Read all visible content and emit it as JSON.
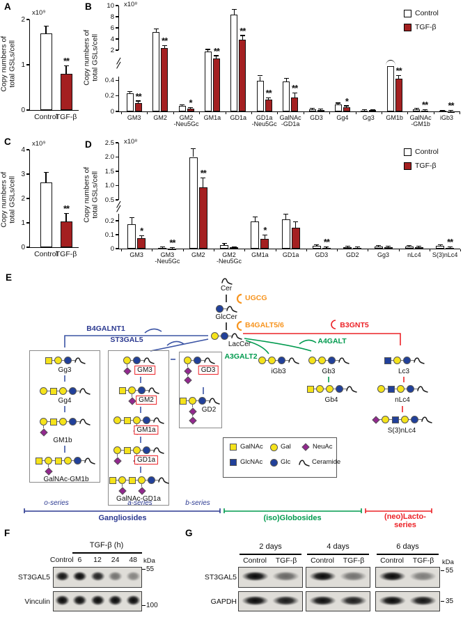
{
  "colors": {
    "control_fill": "#FFFFFF",
    "tgfb_fill": "#A42021",
    "blue": "#2B3990",
    "arrow_blue": "#3A53A4",
    "green": "#009A4E",
    "red": "#EC2227",
    "orange": "#F7941E",
    "yellow": "#F5E31B",
    "glc_blue": "#21409A",
    "neuac_purple": "#93278F"
  },
  "chart_data": [
    {
      "panel_label": "A",
      "type": "bar",
      "scale_label": "x10⁹",
      "ylabel_lines": [
        "Copy numbers of",
        "total GSLs/cell"
      ],
      "categories": [
        "Control",
        "TGF-β"
      ],
      "values": [
        1.7,
        0.8
      ],
      "errors": [
        0.15,
        0.17
      ],
      "sig": [
        "",
        "**"
      ],
      "yticks": [
        0,
        1,
        2
      ],
      "ytick_labels": [
        "0",
        "1",
        "2"
      ],
      "ylim": [
        0,
        2
      ],
      "bar_colors": [
        "#FFFFFF",
        "#A42021"
      ]
    },
    {
      "panel_label": "B",
      "type": "bar",
      "scale_label": "x10⁸",
      "ylabel_lines": [
        "Copy numbers of",
        "total GSLs/cell"
      ],
      "legend": [
        "Control",
        "TGF-β"
      ],
      "categories": [
        "GM3",
        "GM2",
        "GM2-Neu5Gc",
        "GM1a",
        "GD1a",
        "GD1a-Neu5Gc",
        "GalNAc-GD1a",
        "GD3",
        "Gg4",
        "Gg3",
        "GM1b",
        "GalNAc-GM1b",
        "iGb3"
      ],
      "category_lines": [
        [
          "GM3",
          ""
        ],
        [
          "GM2",
          ""
        ],
        [
          "GM2",
          "-Neu5Gc"
        ],
        [
          "GM1a",
          ""
        ],
        [
          "GD1a",
          ""
        ],
        [
          "GD1a",
          "-Neu5Gc"
        ],
        [
          "GalNAc",
          "-GD1a"
        ],
        [
          "GD3",
          ""
        ],
        [
          "Gg4",
          ""
        ],
        [
          "Gg3",
          ""
        ],
        [
          "GM1b",
          ""
        ],
        [
          "GalNAc",
          "-GM1b"
        ],
        [
          "iGb3",
          ""
        ]
      ],
      "axis_break": {
        "lower": [
          0,
          0.45
        ],
        "lower_ticks": [
          0,
          0.2,
          0.4
        ],
        "lower_tick_labels": [
          "0",
          "0.2",
          "0.4"
        ],
        "upper": [
          2,
          10
        ],
        "upper_ticks": [
          2,
          4,
          6,
          8,
          10
        ],
        "upper_tick_labels": [
          "2",
          "4",
          "6",
          "8",
          "10"
        ]
      },
      "series": [
        {
          "name": "Control",
          "fill": "#FFFFFF",
          "values": [
            0.23,
            5.2,
            0.07,
            1.9,
            8.4,
            0.4,
            0.39,
            0.03,
            0.09,
            0.012,
            1.05,
            0.03,
            0.006
          ],
          "errors": [
            0.02,
            0.5,
            0.012,
            0.15,
            0.8,
            0.07,
            0.03,
            0.008,
            0.012,
            0.004,
            0,
            0.008,
            0.002
          ],
          "capped_off_scale": [
            10
          ]
        },
        {
          "name": "TGF-β",
          "fill": "#A42021",
          "values": [
            0.11,
            2.4,
            0.032,
            1.5,
            3.9,
            0.15,
            0.18,
            0.02,
            0.055,
            0.015,
            0.42,
            0.012,
            0.004
          ],
          "errors": [
            0.02,
            0.35,
            0.01,
            0.15,
            0.65,
            0.02,
            0.05,
            0.005,
            0.012,
            0.005,
            0.06,
            0.004,
            0.002
          ],
          "capped_off_scale": []
        }
      ],
      "sig": [
        "**",
        "**",
        "*",
        "**",
        "**",
        "**",
        "**",
        "",
        "*",
        "",
        "**",
        "**",
        "**"
      ]
    },
    {
      "panel_label": "C",
      "type": "bar",
      "scale_label": "x10⁹",
      "ylabel_lines": [
        "Copy numbers of",
        "total GSLs/cell"
      ],
      "categories": [
        "Control",
        "TGF-β"
      ],
      "values": [
        2.65,
        1.05
      ],
      "errors": [
        0.4,
        0.33
      ],
      "sig": [
        "",
        "**"
      ],
      "yticks": [
        0,
        1,
        2,
        3,
        4
      ],
      "ytick_labels": [
        "0",
        "1",
        "2",
        "3",
        "4"
      ],
      "ylim": [
        0,
        4
      ],
      "bar_colors": [
        "#FFFFFF",
        "#A42021"
      ]
    },
    {
      "panel_label": "D",
      "type": "bar",
      "scale_label": "x10⁸",
      "ylabel_lines": [
        "Copy numbers of",
        "total GSLs/cell"
      ],
      "legend": [
        "Control",
        "TGF-β"
      ],
      "categories": [
        "GM3",
        "GM3-Neu5Gc",
        "GM2",
        "GM2-Neu5Gc",
        "GM1a",
        "GD1a",
        "GD3",
        "GD2",
        "Gg3",
        "nLc4",
        "S(3)nLc4"
      ],
      "category_lines": [
        [
          "GM3",
          ""
        ],
        [
          "GM3",
          "-Neu5Gc"
        ],
        [
          "GM2",
          ""
        ],
        [
          "GM2",
          "-Neu5Gc"
        ],
        [
          "GM1a",
          ""
        ],
        [
          "GD1a",
          ""
        ],
        [
          "GD3",
          ""
        ],
        [
          "GD2",
          ""
        ],
        [
          "Gg3",
          ""
        ],
        [
          "nLc4",
          ""
        ],
        [
          "S(3)nLc4",
          ""
        ]
      ],
      "axis_break": {
        "lower": [
          0,
          0.25
        ],
        "lower_ticks": [
          0,
          0.1,
          0.2
        ],
        "lower_tick_labels": [
          "0",
          "0.1",
          "0.2"
        ],
        "upper": [
          0.5,
          2.5
        ],
        "upper_ticks": [
          0.5,
          1.0,
          1.5,
          2.0,
          2.5
        ],
        "upper_tick_labels": [
          "0.5",
          "1.0",
          "1.5",
          "2.0",
          "2.5"
        ]
      },
      "series": [
        {
          "name": "Control",
          "fill": "#FFFFFF",
          "values": [
            0.175,
            0.006,
            2.0,
            0.025,
            0.195,
            0.21,
            0.022,
            0.012,
            0.016,
            0.016,
            0.022
          ],
          "errors": [
            0.045,
            0.002,
            0.28,
            0.008,
            0.03,
            0.035,
            0.004,
            0.003,
            0.004,
            0.004,
            0.004
          ],
          "capped_off_scale": []
        },
        {
          "name": "TGF-β",
          "fill": "#A42021",
          "values": [
            0.075,
            0.002,
            0.95,
            0.008,
            0.07,
            0.15,
            0.006,
            0.006,
            0.01,
            0.01,
            0.006
          ],
          "errors": [
            0.015,
            0.001,
            0.3,
            0.002,
            0.025,
            0.04,
            0.002,
            0.002,
            0.003,
            0.003,
            0.002
          ],
          "capped_off_scale": []
        }
      ],
      "sig": [
        "*",
        "**",
        "**",
        "",
        "*",
        "",
        "**",
        "",
        "",
        "",
        "**"
      ]
    }
  ],
  "pathway": {
    "panel_label": "E",
    "enzymes": {
      "UGCG": "UGCG",
      "B4GALT56": "B4GALT5/6",
      "B4GALNT1": "B4GALNT1",
      "ST3GAL5": "ST3GAL5",
      "A3GALT2": "A3GALT2",
      "A4GALT": "A4GALT",
      "B3GNT5": "B3GNT5"
    },
    "nodes": [
      {
        "name": "Cer",
        "chain": [
          "Cer"
        ]
      },
      {
        "name": "GlcCer",
        "chain": [
          "Glc",
          "Cer"
        ]
      },
      {
        "name": "LacCer",
        "chain": [
          "Gal",
          "Glc",
          "Cer"
        ]
      },
      {
        "name": "Gg3",
        "chain": [
          "GalNAc",
          "Gal",
          "Glc",
          "Cer"
        ]
      },
      {
        "name": "Gg4",
        "chain": [
          "Gal",
          "GalNAc",
          "Gal",
          "Glc",
          "Cer"
        ]
      },
      {
        "name": "GM1b",
        "chain": [
          "Gal",
          "GalNAc",
          "Gal",
          "Glc",
          "Cer"
        ],
        "below": {
          "0": 1
        }
      },
      {
        "name": "GalNAc-GM1b",
        "chain": [
          "GalNAc",
          "Gal",
          "GalNAc",
          "Gal",
          "Glc",
          "Cer"
        ],
        "below": {
          "1": 1
        }
      },
      {
        "name": "GM3",
        "chain": [
          "Gal",
          "Glc",
          "Cer"
        ],
        "below": {
          "0": 1
        },
        "highlight": true
      },
      {
        "name": "GM2",
        "chain": [
          "GalNAc",
          "Gal",
          "Glc",
          "Cer"
        ],
        "below": {
          "1": 1
        },
        "highlight": true
      },
      {
        "name": "GM1a",
        "chain": [
          "Gal",
          "GalNAc",
          "Gal",
          "Glc",
          "Cer"
        ],
        "below": {
          "2": 1
        },
        "highlight": true
      },
      {
        "name": "GD1a",
        "chain": [
          "Gal",
          "GalNAc",
          "Gal",
          "Glc",
          "Cer"
        ],
        "below": {
          "0": 1,
          "2": 1
        },
        "highlight": true
      },
      {
        "name": "GalNAc-GD1a",
        "chain": [
          "GalNAc",
          "Gal",
          "GalNAc",
          "Gal",
          "Glc",
          "Cer"
        ],
        "below": {
          "1": 1,
          "3": 1
        }
      },
      {
        "name": "GD3",
        "chain": [
          "Gal",
          "Glc",
          "Cer"
        ],
        "below": {
          "0": 2
        },
        "highlight": true
      },
      {
        "name": "GD2",
        "chain": [
          "GalNAc",
          "Gal",
          "Glc",
          "Cer"
        ],
        "below": {
          "1": 2
        }
      },
      {
        "name": "iGb3",
        "chain": [
          "Gal",
          "Gal",
          "Glc",
          "Cer"
        ]
      },
      {
        "name": "Gb3",
        "chain": [
          "Gal",
          "Gal",
          "Glc",
          "Cer"
        ]
      },
      {
        "name": "Gb4",
        "chain": [
          "GalNAc",
          "Gal",
          "Gal",
          "Glc",
          "Cer"
        ]
      },
      {
        "name": "Lc3",
        "chain": [
          "GlcNAc",
          "Gal",
          "Glc",
          "Cer"
        ]
      },
      {
        "name": "nLc4",
        "chain": [
          "Gal",
          "GlcNAc",
          "Gal",
          "Glc",
          "Cer"
        ]
      },
      {
        "name": "S(3)nLc4",
        "chain": [
          "NeuAc",
          "Gal",
          "GlcNAc",
          "Gal",
          "Glc",
          "Cer"
        ]
      }
    ],
    "sugar_legend": [
      {
        "label": "GalNAc",
        "shape": "square",
        "color": "#F5E31B"
      },
      {
        "label": "Gal",
        "shape": "circle",
        "color": "#F5E31B"
      },
      {
        "label": "NeuAc",
        "shape": "diamond",
        "color": "#93278F"
      },
      {
        "label": "GlcNAc",
        "shape": "square",
        "color": "#21409A"
      },
      {
        "label": "Glc",
        "shape": "circle",
        "color": "#21409A"
      },
      {
        "label": "Ceramide",
        "shape": "cer",
        "color": "#1b1b1b"
      }
    ],
    "series_labels": [
      "o-series",
      "a-series",
      "b-series"
    ],
    "family_labels": [
      {
        "text": "Gangliosides",
        "color": "#2B3990"
      },
      {
        "text": "(iso)Globosides",
        "color": "#009A4E"
      },
      {
        "text": "(neo)Lacto-",
        "color": "#EC2227"
      },
      {
        "text": "series",
        "color": "#EC2227"
      }
    ]
  },
  "blot_f": {
    "panel_label": "F",
    "header": "TGF-β (h)",
    "lanes": [
      "Control",
      "6",
      "12",
      "24",
      "48"
    ],
    "kda": "kDa",
    "rows": [
      {
        "antibody": "ST3GAL5",
        "marker": "55",
        "intensities": [
          0.95,
          1,
          0.88,
          0.5,
          0.42
        ]
      },
      {
        "antibody": "Vinculin",
        "marker": "100",
        "intensities": [
          1,
          0.98,
          1,
          1,
          1
        ]
      }
    ]
  },
  "blot_g": {
    "panel_label": "G",
    "groups": [
      "2 days",
      "4 days",
      "6 days"
    ],
    "lanes": [
      "Control",
      "TGF-β"
    ],
    "kda": "kDa",
    "rows": [
      {
        "antibody": "ST3GAL5",
        "marker": "55",
        "intensities": [
          [
            1,
            0.55
          ],
          [
            1,
            0.5
          ],
          [
            1,
            0.45
          ]
        ]
      },
      {
        "antibody": "GAPDH",
        "marker": "35",
        "intensities": [
          [
            1,
            0.92
          ],
          [
            0.98,
            0.9
          ],
          [
            1,
            0.95
          ]
        ]
      }
    ]
  }
}
